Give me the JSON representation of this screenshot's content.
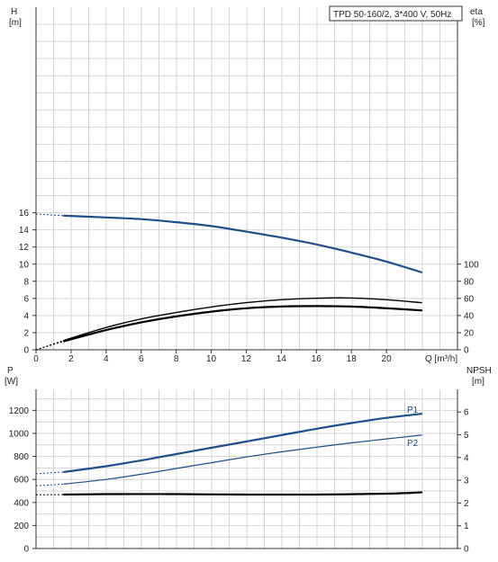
{
  "title": "TPD 50-160/2, 3*400 V, 50Hz",
  "colors": {
    "grid": "#d4d4d4",
    "axis": "#333333",
    "blue": "#1f4e8c",
    "black": "#000000",
    "text": "#222222"
  },
  "chart_data": [
    {
      "type": "line",
      "panel": "top",
      "x_label": "Q [m³/h]",
      "x_range": [
        0,
        22
      ],
      "x_ticks": [
        0,
        2,
        4,
        6,
        8,
        10,
        12,
        14,
        16,
        18,
        20
      ],
      "left_axis": {
        "label_line1": "H",
        "label_line2": "[m]",
        "range": [
          0,
          18
        ],
        "ticks": [
          0,
          2,
          4,
          6,
          8,
          10,
          12,
          14,
          16
        ]
      },
      "right_axis": {
        "label_line1": "eta",
        "label_line2": "[%]",
        "range": [
          0,
          180
        ],
        "ticks": [
          0,
          20,
          40,
          60,
          80,
          100
        ]
      },
      "grid": true,
      "series": [
        {
          "id": "H",
          "axis": "left",
          "color": "blue",
          "width": 2.2,
          "x": [
            0,
            1.6,
            4,
            6,
            8,
            10,
            12,
            14,
            16,
            18,
            20,
            22
          ],
          "y": [
            15.85,
            15.65,
            15.45,
            15.25,
            14.9,
            14.45,
            13.8,
            13.1,
            12.3,
            11.35,
            10.3,
            9.05
          ],
          "dashed_until": 1.6
        },
        {
          "id": "eta-total",
          "axis": "right",
          "color": "black",
          "width": 1.4,
          "x": [
            0,
            1.6,
            4,
            6,
            8,
            10,
            12,
            14,
            16,
            18,
            20,
            22
          ],
          "y": [
            0,
            11,
            26,
            36,
            43.5,
            50,
            55,
            58.5,
            60.2,
            60.5,
            58.5,
            55
          ],
          "dashed_until": 1.6
        },
        {
          "id": "eta-pump",
          "axis": "right",
          "color": "black",
          "width": 2.2,
          "x": [
            0,
            1.6,
            4,
            6,
            8,
            10,
            12,
            14,
            16,
            18,
            20,
            22
          ],
          "y": [
            0,
            10,
            23,
            32,
            39,
            44.5,
            48.5,
            50.5,
            51,
            50.5,
            48.5,
            46
          ],
          "dashed_until": 1.6
        }
      ]
    },
    {
      "type": "line",
      "panel": "bottom",
      "x_range": [
        0,
        22
      ],
      "left_axis": {
        "label_line1": "P",
        "label_line2": "[W]",
        "range": [
          0,
          1400
        ],
        "ticks": [
          0,
          200,
          400,
          600,
          800,
          1000,
          1200
        ]
      },
      "right_axis": {
        "label_line1": "NPSH",
        "label_line2": "[m]",
        "range": [
          0,
          7
        ],
        "ticks": [
          0,
          1,
          2,
          3,
          4,
          5,
          6
        ]
      },
      "grid": true,
      "series": [
        {
          "id": "P1",
          "name": "P1",
          "axis": "left",
          "color": "blue",
          "width": 2.2,
          "x": [
            0,
            1.6,
            4,
            6,
            8,
            10,
            12,
            14,
            16,
            18,
            20,
            22
          ],
          "y": [
            650,
            665,
            715,
            765,
            820,
            875,
            930,
            985,
            1040,
            1090,
            1135,
            1170
          ],
          "dashed_until": 1.6
        },
        {
          "id": "P2",
          "name": "P2",
          "axis": "left",
          "color": "blue",
          "width": 1.2,
          "x": [
            0,
            1.6,
            4,
            6,
            8,
            10,
            12,
            14,
            16,
            18,
            20,
            22
          ],
          "y": [
            545,
            560,
            600,
            645,
            695,
            745,
            795,
            840,
            880,
            918,
            952,
            985
          ],
          "dashed_until": 1.6
        },
        {
          "id": "NPSH",
          "axis": "right",
          "color": "black",
          "width": 2.2,
          "x": [
            0,
            1.6,
            4,
            8,
            12,
            16,
            20,
            22
          ],
          "y": [
            2.36,
            2.37,
            2.39,
            2.39,
            2.37,
            2.37,
            2.41,
            2.47
          ],
          "dashed_until": 1.6
        }
      ]
    }
  ]
}
